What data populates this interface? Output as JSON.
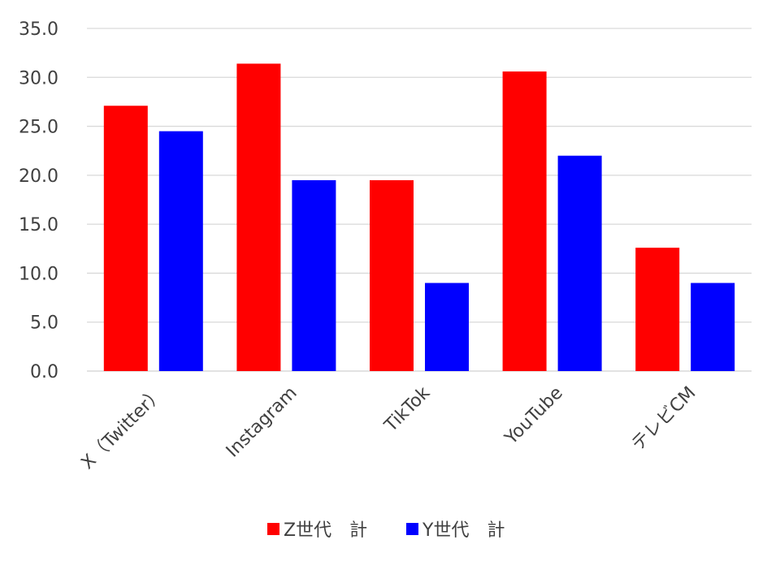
{
  "chart_data": {
    "type": "bar",
    "categories": [
      "X（Twitter）",
      "Instagram",
      "TikTok",
      "YouTube",
      "テレビCM"
    ],
    "series": [
      {
        "name": "Z世代　計",
        "color": "#ff0000",
        "values": [
          27.1,
          31.4,
          19.5,
          30.6,
          12.6
        ]
      },
      {
        "name": "Y世代　計",
        "color": "#0000ff",
        "values": [
          24.5,
          19.5,
          9.0,
          22.0,
          9.0
        ]
      }
    ],
    "ylim": [
      0,
      35
    ],
    "yticks": [
      "0.0",
      "5.0",
      "10.0",
      "15.0",
      "20.0",
      "25.0",
      "30.0",
      "35.0"
    ],
    "grid": true,
    "legend": "bottom",
    "gridColor": "#d9d9d9",
    "axisColor": "#d9d9d9",
    "textColor": "#404040"
  }
}
